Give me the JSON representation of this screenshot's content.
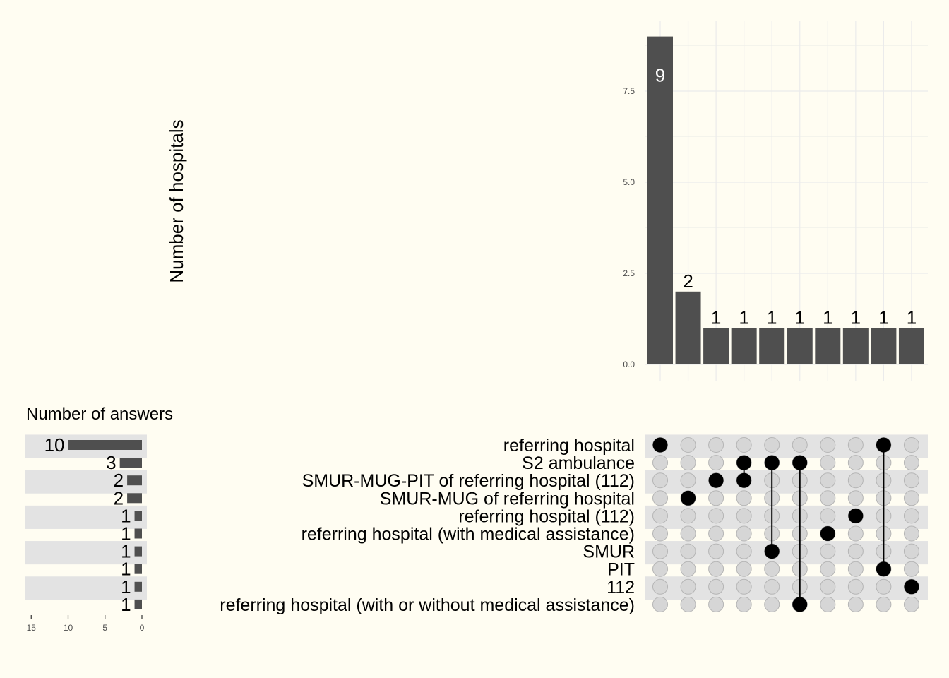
{
  "chart_data": {
    "type": "upset",
    "colors": {
      "background": "#fffdf2",
      "bar": "#4f4f4f",
      "stripe": "#e3e3e3",
      "dot_active": "#000000",
      "dot_inactive": "#d6d6d6",
      "grid": "#ebebeb"
    },
    "intersection_chart": {
      "type": "bar",
      "ylabel": "Number of hospitals",
      "ylim": [
        0,
        9.4
      ],
      "yticks": [
        "0.0",
        "2.5",
        "5.0",
        "7.5"
      ],
      "ytick_values": [
        0,
        2.5,
        5,
        7.5
      ],
      "values": [
        9,
        2,
        1,
        1,
        1,
        1,
        1,
        1,
        1,
        1
      ],
      "labels": [
        "9",
        "2",
        "1",
        "1",
        "1",
        "1",
        "1",
        "1",
        "1",
        "1"
      ]
    },
    "set_size_chart": {
      "type": "bar",
      "title": "Number of answers",
      "xlim": [
        15,
        0
      ],
      "xticks": [
        "15",
        "10",
        "5",
        "0"
      ],
      "xtick_values": [
        15,
        10,
        5,
        0
      ]
    },
    "sets": [
      {
        "name": "referring hospital",
        "size": 10
      },
      {
        "name": "S2 ambulance",
        "size": 3
      },
      {
        "name": "SMUR-MUG-PIT of referring hospital (112)",
        "size": 2
      },
      {
        "name": "SMUR-MUG of referring hospital",
        "size": 2
      },
      {
        "name": "referring hospital (112)",
        "size": 1
      },
      {
        "name": "referring hospital (with medical assistance)",
        "size": 1
      },
      {
        "name": "SMUR",
        "size": 1
      },
      {
        "name": "PIT",
        "size": 1
      },
      {
        "name": "112",
        "size": 1
      },
      {
        "name": "referring hospital (with or without medical assistance)",
        "size": 1
      }
    ],
    "intersections": [
      {
        "sets": [
          0
        ],
        "count": 9
      },
      {
        "sets": [
          3
        ],
        "count": 2
      },
      {
        "sets": [
          2
        ],
        "count": 1
      },
      {
        "sets": [
          1,
          2
        ],
        "count": 1
      },
      {
        "sets": [
          1,
          6
        ],
        "count": 1
      },
      {
        "sets": [
          1,
          9
        ],
        "count": 1
      },
      {
        "sets": [
          5
        ],
        "count": 1
      },
      {
        "sets": [
          4
        ],
        "count": 1
      },
      {
        "sets": [
          0,
          7
        ],
        "count": 1
      },
      {
        "sets": [
          8
        ],
        "count": 1
      }
    ]
  }
}
